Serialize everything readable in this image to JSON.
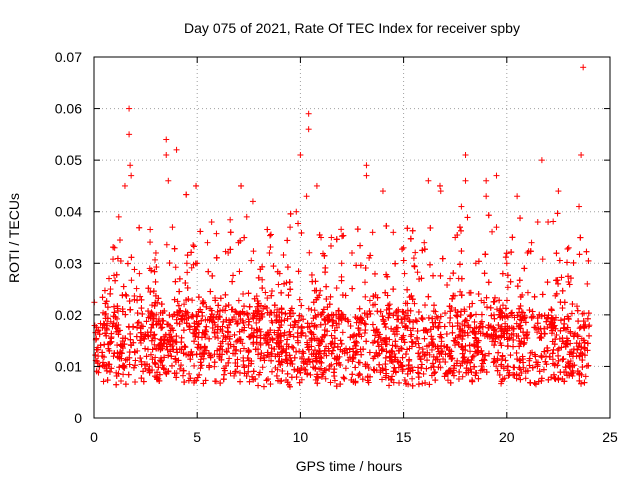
{
  "chart_data": {
    "type": "scatter",
    "title": "Day 075 of 2021, Rate Of TEC Index for receiver spby",
    "xlabel": "GPS time / hours",
    "ylabel": "ROTI / TECUs",
    "xlim": [
      0,
      25
    ],
    "ylim": [
      0,
      0.07
    ],
    "x_ticks": [
      "0",
      "5",
      "10",
      "15",
      "20",
      "25"
    ],
    "y_ticks": [
      "0",
      "0.01",
      "0.02",
      "0.03",
      "0.04",
      "0.05",
      "0.06",
      "0.07"
    ],
    "x_tick_values": [
      0,
      5,
      10,
      15,
      20,
      25
    ],
    "y_tick_values": [
      0,
      0.01,
      0.02,
      0.03,
      0.04,
      0.05,
      0.06,
      0.07
    ],
    "grid": true,
    "marker": "+",
    "color": "#ff0000",
    "series": [
      {
        "name": "ROTI",
        "description": "dense band of values 0.004-0.025 over 0-24 h",
        "points": [
          [
            0.2,
            0.012
          ],
          [
            0.5,
            0.018
          ],
          [
            0.8,
            0.025
          ],
          [
            1.0,
            0.033
          ],
          [
            1.2,
            0.039
          ],
          [
            1.5,
            0.045
          ],
          [
            1.7,
            0.06
          ],
          [
            1.7,
            0.055
          ],
          [
            1.75,
            0.049
          ],
          [
            1.8,
            0.047
          ],
          [
            2.2,
            0.028
          ],
          [
            2.7,
            0.029
          ],
          [
            3.0,
            0.032
          ],
          [
            3.5,
            0.054
          ],
          [
            3.5,
            0.051
          ],
          [
            3.6,
            0.046
          ],
          [
            3.8,
            0.037
          ],
          [
            4.0,
            0.052
          ],
          [
            4.5,
            0.03
          ],
          [
            5.0,
            0.03
          ],
          [
            5.5,
            0.034
          ],
          [
            5.7,
            0.038
          ],
          [
            6.5,
            0.032
          ],
          [
            7.0,
            0.034
          ],
          [
            7.4,
            0.039
          ],
          [
            7.7,
            0.042
          ],
          [
            8.5,
            0.032
          ],
          [
            9.0,
            0.028
          ],
          [
            9.5,
            0.037
          ],
          [
            9.8,
            0.04
          ],
          [
            10.0,
            0.051
          ],
          [
            10.4,
            0.059
          ],
          [
            10.4,
            0.056
          ],
          [
            10.3,
            0.043
          ],
          [
            10.8,
            0.045
          ],
          [
            11.0,
            0.035
          ],
          [
            11.5,
            0.035
          ],
          [
            12.0,
            0.03
          ],
          [
            12.5,
            0.032
          ],
          [
            13.2,
            0.049
          ],
          [
            13.2,
            0.047
          ],
          [
            13.5,
            0.036
          ],
          [
            14.0,
            0.044
          ],
          [
            14.5,
            0.036
          ],
          [
            15.0,
            0.033
          ],
          [
            15.5,
            0.031
          ],
          [
            16.0,
            0.034
          ],
          [
            16.2,
            0.046
          ],
          [
            16.8,
            0.044
          ],
          [
            17.5,
            0.035
          ],
          [
            17.8,
            0.041
          ],
          [
            18.0,
            0.051
          ],
          [
            18.0,
            0.046
          ],
          [
            18.5,
            0.03
          ],
          [
            19.0,
            0.046
          ],
          [
            19.0,
            0.043
          ],
          [
            19.5,
            0.047
          ],
          [
            19.5,
            0.037
          ],
          [
            20.0,
            0.03
          ],
          [
            20.5,
            0.043
          ],
          [
            21.2,
            0.034
          ],
          [
            21.7,
            0.05
          ],
          [
            21.5,
            0.038
          ],
          [
            22.0,
            0.038
          ],
          [
            22.5,
            0.044
          ],
          [
            23.0,
            0.033
          ],
          [
            23.5,
            0.041
          ],
          [
            23.7,
            0.068
          ],
          [
            23.6,
            0.051
          ],
          [
            23.9,
            0.026
          ],
          [
            24.0,
            0.018
          ]
        ]
      }
    ]
  }
}
